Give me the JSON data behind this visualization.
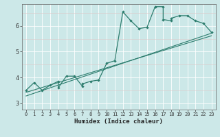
{
  "title": "",
  "xlabel": "Humidex (Indice chaleur)",
  "bg_color": "#cce8e8",
  "line_color": "#2d7d6e",
  "grid_color": "#ffffff",
  "grid_red_color": "#e8cccc",
  "xlim": [
    -0.5,
    23.5
  ],
  "ylim": [
    2.75,
    6.85
  ],
  "xticks": [
    0,
    1,
    2,
    3,
    4,
    5,
    6,
    7,
    8,
    9,
    10,
    11,
    12,
    13,
    14,
    15,
    16,
    17,
    18,
    19,
    20,
    21,
    22,
    23
  ],
  "yticks": [
    3,
    4,
    5,
    6
  ],
  "scatter_x": [
    0,
    1,
    2,
    3,
    4,
    4,
    5,
    6,
    7,
    7,
    8,
    9,
    10,
    11,
    12,
    13,
    14,
    15,
    16,
    16,
    17,
    17,
    18,
    18,
    19,
    20,
    21,
    22,
    23
  ],
  "scatter_y": [
    3.5,
    3.8,
    3.5,
    3.7,
    3.85,
    3.6,
    4.05,
    4.05,
    3.65,
    3.75,
    3.85,
    3.9,
    4.55,
    4.65,
    6.55,
    6.2,
    5.9,
    5.95,
    6.75,
    6.75,
    6.75,
    6.25,
    6.2,
    6.3,
    6.4,
    6.4,
    6.2,
    6.1,
    5.75
  ],
  "trend1_x": [
    0,
    23
  ],
  "trend1_y": [
    3.42,
    5.62
  ],
  "trend2_x": [
    0,
    23
  ],
  "trend2_y": [
    3.28,
    5.72
  ]
}
